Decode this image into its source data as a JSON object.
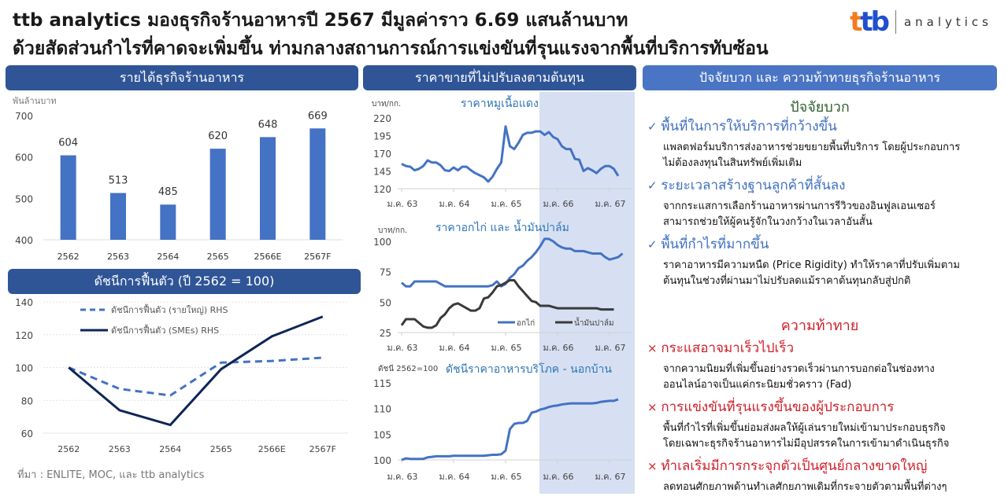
{
  "header": {
    "title_line1": "ttb analytics มองธุรกิจร้านอาหารปี 2567 มีมูลค่าราว 6.69 แสนล้านบาท",
    "title_line2": "ด้วยสัดส่วนกำไรที่คาดจะเพิ่มขึ้น ท่ามกลางสถานการณ์การแข่งขันที่รุนแรงจากพื้นที่บริการทับซ้อน",
    "logo_text": "ttb",
    "logo_sub": "analytics"
  },
  "panels": {
    "revenue": "รายได้ธุรกิจร้านอาหาร",
    "prices": "ราคาขายที่ไม่ปรับลงตามต้นทุน",
    "factors": "ปัจจัยบวก และ ความท้าทายธุรกิจร้านอาหาร",
    "recovery": "ดัชนีการฟื้นตัว (ปี 2562 = 100)"
  },
  "source": "ที่มา : ENLITE, MOC, และ ttb  analytics",
  "colors": {
    "header_dark": "#2f5597",
    "header_light": "#4a74c4",
    "bar": "#4472c4",
    "sme": "#0f2557",
    "shade": "#d6e0f2",
    "palm": "#3a3a3a",
    "positive": "#2e5e2e",
    "challenge": "#d0202a"
  },
  "positive": {
    "title": "ปัจจัยบวก",
    "icon": "check-icon",
    "mark": "✓",
    "items": [
      {
        "heading": "พื้นที่ในการให้บริการที่กว้างขึ้น",
        "body": [
          "แพลตฟอร์มบริการส่งอาหารช่วยขยายพื้นที่บริการ  โดยผู้ประกอบการ",
          "ไม่ต้องลงทุนในสินทรัพย์เพิ่มเติม"
        ]
      },
      {
        "heading": "ระยะเวลาสร้างฐานลูกค้าที่สั้นลง",
        "body": [
          "จากกระแสการเลือกร้านอาหารผ่านการรีวิวของอินฟูลเอนเซอร์",
          "สามารถช่วยให้ผู้คนรู้จักในวงกว้างในเวลาอันสั้น"
        ]
      },
      {
        "heading": "พื้นที่กำไรที่มากขึ้น",
        "body": [
          "ราคาอาหารมีความหนืด  (Price Rigidity) ทำให้ราคาที่ปรับเพิ่มตาม",
          "ต้นทุนในช่วงที่ผ่านมาไม่ปรับลดแม้ราคาต้นทุนกลับสู่ปกติ"
        ]
      }
    ]
  },
  "challenges": {
    "title": "ความท้าทาย",
    "icon": "cross-icon",
    "mark": "×",
    "items": [
      {
        "heading": "กระแสอาจมาเร็วไปเร็ว",
        "body": [
          "จากความนิยมที่เพิ่มขึ้นอย่างรวดเร็วผ่านการบอกต่อในช่องทาง",
          "ออนไลน์อาจเป็นแค่กระนิยมชั่วคราว  (Fad)"
        ]
      },
      {
        "heading": "การแข่งขันที่รุนแรงขึ้นของผู้ประกอบการ",
        "body": [
          "พื้นที่กำไรที่เพิ่มขึ้นย่อมส่งผลให้ผู้เล่นรายใหม่เข้ามาประกอบธุรกิจ",
          "โดยเฉพาะธุรกิจร้านอาหารไม่มีอุปสรรคในการเข้ามาดำเนินธุรกิจ"
        ]
      },
      {
        "heading": "ทำเลเริ่มมีการกระจุกตัวเป็นศูนย์กลางขาดใหญ่",
        "body": [
          "ลดทอนศักยภาพด้านทำเลศักยภาพเดิมที่กระจายตัวตามพื้นที่ต่างๆ"
        ]
      }
    ]
  },
  "chart_data": [
    {
      "id": "revenue",
      "type": "bar",
      "ylabel": "พันล้านบาท",
      "categories": [
        "2562",
        "2563",
        "2564",
        "2565",
        "2566E",
        "2567F"
      ],
      "values": [
        604,
        513,
        485,
        620,
        648,
        669
      ],
      "ylim": [
        400,
        700
      ],
      "yticks": [
        400,
        500,
        600,
        700
      ],
      "data_labels": true
    },
    {
      "id": "recovery",
      "type": "line",
      "categories": [
        "2562",
        "2563",
        "2564",
        "2565",
        "2566E",
        "2567F"
      ],
      "ylim": [
        60,
        140
      ],
      "yticks": [
        60,
        80,
        100,
        120,
        140
      ],
      "grid": true,
      "legend": "top-left",
      "series": [
        {
          "name": "ดัชนีการฟื้นตัว (รายใหญ่) RHS",
          "style": "dashed",
          "values": [
            100,
            87,
            83,
            103,
            104,
            106
          ]
        },
        {
          "name": "ดัชนีการฟื้นตัว (SMEs) RHS",
          "style": "solid",
          "values": [
            100,
            74,
            65,
            99,
            119,
            131
          ]
        }
      ]
    },
    {
      "id": "pork",
      "type": "line",
      "title": "ราคาหมูเนื้อแดง",
      "ylabel": "บาท/กก.",
      "ylim": [
        120,
        220
      ],
      "yticks": [
        120,
        145,
        170,
        195,
        220
      ],
      "xticks": [
        "ม.ค. 63",
        "ม.ค. 64",
        "ม.ค. 65",
        "ม.ค. 66",
        "ม.ค. 67"
      ],
      "x_frequency": "monthly from ม.ค. 63",
      "series": [
        {
          "values": [
            155,
            152,
            151,
            146,
            148,
            152,
            160,
            157,
            157,
            153,
            146,
            145,
            150,
            146,
            151,
            151,
            146,
            142,
            139,
            136,
            130,
            137,
            148,
            157,
            208,
            180,
            176,
            185,
            196,
            199,
            199,
            201,
            201,
            196,
            200,
            193,
            190,
            180,
            176,
            176,
            162,
            161,
            145,
            149,
            146,
            142,
            148,
            152,
            152,
            148,
            138
          ]
        }
      ]
    },
    {
      "id": "chicken_palm",
      "type": "line",
      "title": "ราคาอกไก่ และ น้ำมันปาล์ม",
      "ylabel": "บาท/กก.",
      "ylim": [
        25,
        100
      ],
      "yticks": [
        25,
        50,
        75,
        100
      ],
      "xticks": [
        "ม.ค. 63",
        "ม.ค. 64",
        "ม.ค. 65",
        "ม.ค. 66",
        "ม.ค. 67"
      ],
      "legend": "bottom-right",
      "series": [
        {
          "name": "อกไก่",
          "values": [
            66,
            63,
            63,
            67,
            67,
            67,
            67,
            67,
            67,
            65,
            63,
            63,
            63,
            63,
            63,
            63,
            63,
            63,
            63,
            63,
            63,
            64,
            67,
            63,
            65,
            70,
            73,
            78,
            80,
            84,
            87,
            91,
            96,
            102,
            102,
            100,
            97,
            95,
            94,
            94,
            92,
            92,
            92,
            91,
            90,
            90,
            90,
            87,
            85,
            86,
            87,
            90
          ]
        },
        {
          "name": "น้ำมันปาล์ม",
          "values": [
            31,
            36,
            36,
            36,
            33,
            30,
            29,
            29,
            31,
            37,
            40,
            45,
            48,
            49,
            47,
            45,
            43,
            43,
            45,
            53,
            54,
            58,
            63,
            64,
            66,
            68,
            68,
            63,
            59,
            55,
            51,
            50,
            47,
            47,
            47,
            46,
            45,
            45,
            45,
            45,
            45,
            45,
            45,
            45,
            45,
            45,
            44,
            44,
            44,
            44
          ]
        }
      ]
    },
    {
      "id": "cpi_outside",
      "type": "line",
      "title": "ดัชนีราคาอาหารบริโภค - นอกบ้าน",
      "ylabel": "ดัชนี 2562=100",
      "ylim": [
        100,
        115
      ],
      "yticks": [
        100,
        105,
        110,
        115
      ],
      "xticks": [
        "ม.ค. 63",
        "ม.ค. 64",
        "ม.ค. 65",
        "ม.ค. 66",
        "ม.ค. 67"
      ],
      "series": [
        {
          "values": [
            100,
            100.3,
            100.2,
            100.2,
            100.2,
            100.2,
            100.5,
            100.6,
            100.7,
            100.7,
            100.7,
            100.7,
            100.8,
            100.8,
            100.8,
            100.8,
            100.8,
            100.8,
            100.8,
            100.8,
            100.9,
            101,
            101,
            101.1,
            101.8,
            106,
            107,
            107.2,
            107.2,
            107.6,
            109.2,
            109.4,
            109.8,
            110,
            110.3,
            110.5,
            110.6,
            110.8,
            110.9,
            111,
            111,
            111,
            111,
            111,
            111,
            111.1,
            111.3,
            111.4,
            111.5,
            111.5,
            111.8
          ]
        }
      ]
    }
  ]
}
